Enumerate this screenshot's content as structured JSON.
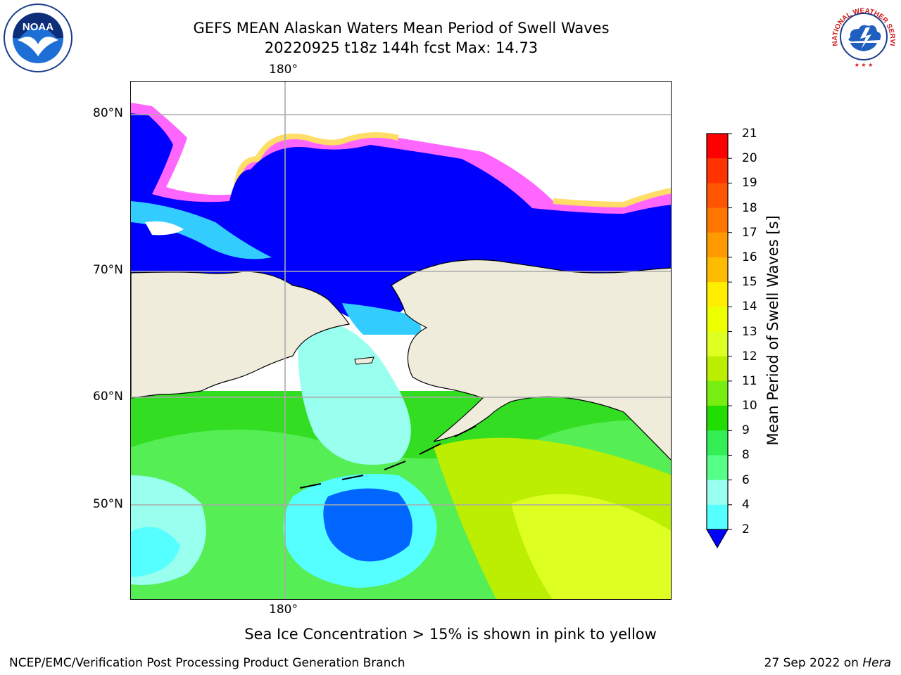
{
  "title": {
    "line1": "GEFS MEAN Alaskan Waters Mean Period of Swell Waves",
    "line2": "20220925 t18z 144h fcst   Max: 14.73"
  },
  "map": {
    "lon_label": "180°",
    "lat_labels": {
      "n80": "80°N",
      "n70": "70°N",
      "n60": "60°N",
      "n50": "50°N"
    },
    "land_color": "#efecdc",
    "ice_color_low": "#ff66ff",
    "ice_color_high": "#ffee55"
  },
  "colorbar": {
    "title": "Mean Period of Swell Waves [s]",
    "ticks": [
      "21",
      "20",
      "19",
      "18",
      "17",
      "16",
      "15",
      "14",
      "13",
      "12",
      "11",
      "10",
      "9",
      "8",
      "6",
      "4",
      "2"
    ],
    "colors": [
      "#ff0000",
      "#ff3300",
      "#ff5500",
      "#ff7700",
      "#ff9900",
      "#ffbb00",
      "#ffee00",
      "#eeff00",
      "#ddff22",
      "#bbee00",
      "#77ee11",
      "#22dd00",
      "#33ee55",
      "#55ff88",
      "#99ffee",
      "#55ffff",
      "#00eeff",
      "#00ccff",
      "#0066ff",
      "#0000ff"
    ],
    "extend_color": "#0000ff"
  },
  "ice_note": "Sea Ice Concentration > 15% is shown in pink to yellow",
  "credit": "NCEP/EMC/Verification Post Processing Product Generation Branch",
  "stamp": {
    "date": "27 Sep 2022 on",
    "host": "Hera"
  },
  "logos": {
    "left": "NOAA",
    "right": "NATIONAL WEATHER SERVICE"
  }
}
